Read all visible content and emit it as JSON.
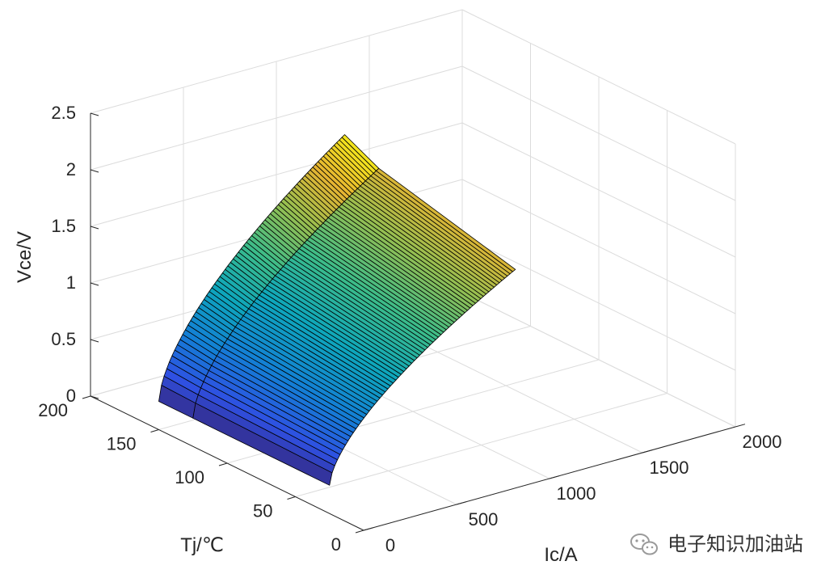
{
  "chart_data": {
    "type": "surface",
    "title": "",
    "xlabel": "Ic/A",
    "ylabel": "Tj/℃",
    "zlabel": "Vce/V",
    "xlim": [
      0,
      2000
    ],
    "ylim": [
      0,
      200
    ],
    "zlim": [
      0,
      2.5
    ],
    "x_ticks": [
      "0",
      "500",
      "1000",
      "1500",
      "2000"
    ],
    "y_ticks": [
      "0",
      "50",
      "100",
      "150",
      "200"
    ],
    "z_ticks": [
      "0",
      "0.5",
      "1",
      "1.5",
      "2",
      "2.5"
    ],
    "grid": true,
    "colormap": "parula",
    "surface": {
      "ic": [
        0,
        1000
      ],
      "tj": [
        25,
        125,
        150
      ],
      "vce_at_ic_1000": {
        "25": 1.7,
        "125": 2.0,
        "150": 2.15
      },
      "vce_min": 0.25
    }
  },
  "watermark": {
    "icon": "wechat-icon",
    "text": "电子知识加油站"
  }
}
